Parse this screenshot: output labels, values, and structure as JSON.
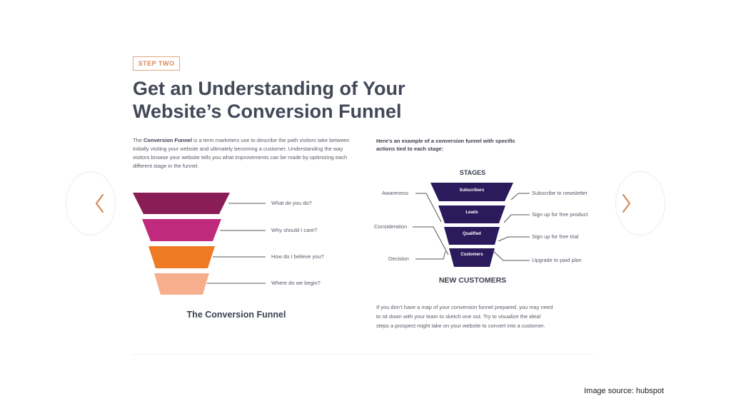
{
  "badge": "STEP TWO",
  "headline": {
    "line1": "Get an Understanding of Your",
    "line2": "Website’s Conversion Funnel"
  },
  "intro": {
    "before": "The ",
    "bold": "Conversion Funnel",
    "after": " is a term marketers use to describe the path visitors take between initially visiting your website and ultimately becoming a customer. Understanding the way visitors browse your website tells you what improvements can be made by optimizing each different stage in the funnel."
  },
  "funnel_left": {
    "caption": "The Conversion Funnel",
    "layers": [
      {
        "question": "What do you do?",
        "color": "#8b1d56"
      },
      {
        "question": "Why should I care?",
        "color": "#c02a7c"
      },
      {
        "question": "How do I believe you?",
        "color": "#ef7a24"
      },
      {
        "question": "Where do we begin?",
        "color": "#f7ae8d"
      }
    ]
  },
  "example": {
    "intro": "Here’s an example of a conversion funnel with specific actions tied to each stage:",
    "stages_title": "STAGES",
    "stages": [
      "Subscribers",
      "Leads",
      "Qualified",
      "Customers"
    ],
    "left_labels": [
      "Awareness",
      "Consideration",
      "Decision"
    ],
    "right_labels": [
      "Subscribe to newsletter",
      "Sign up for free product",
      "Sign up for free trial",
      "Upgrade to paid plan"
    ],
    "bottom_label": "NEW CUSTOMERS",
    "color": "#2b1a5c",
    "closing": "If you don’t have a map of your conversion funnel prepared, you may need to sit down with your team to sketch one out. Try to visualize the ideal steps a prospect might take on your website to convert into a customer."
  },
  "nav": {
    "prev_icon": "chevron-left-icon",
    "next_icon": "chevron-right-icon",
    "color": "#d58a5a"
  },
  "source": "Image source: hubspot"
}
